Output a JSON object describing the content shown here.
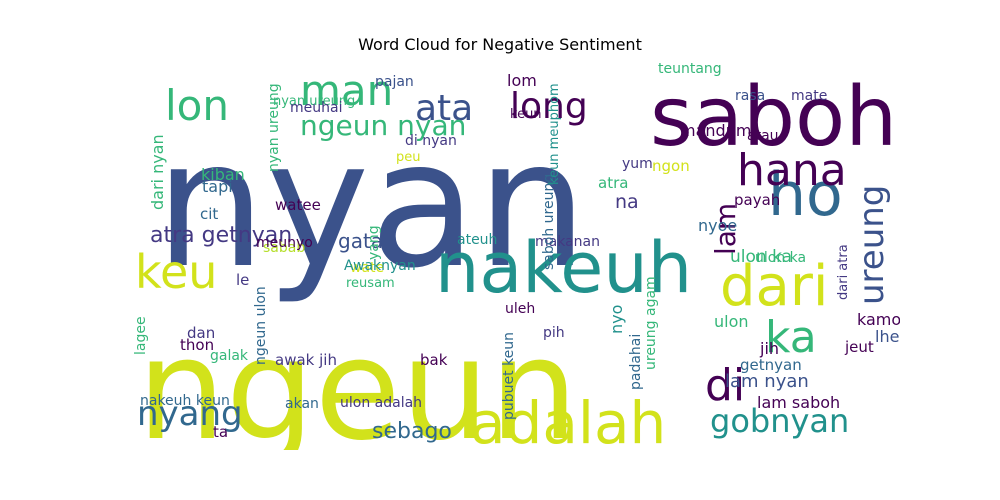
{
  "title": "Word Cloud for Negative Sentiment",
  "palette": "viridis",
  "words": [
    {
      "text": "nyan",
      "color": "#3b528b"
    },
    {
      "text": "ngeun",
      "color": "#d2e21b"
    },
    {
      "text": "saboh",
      "color": "#440154"
    },
    {
      "text": "nakeuh",
      "color": "#21918c"
    },
    {
      "text": "adalah",
      "color": "#d2e21b"
    },
    {
      "text": "dari",
      "color": "#d2e21b"
    },
    {
      "text": "keu",
      "color": "#d2e21b"
    },
    {
      "text": "ho",
      "color": "#31688e"
    },
    {
      "text": "hana",
      "color": "#440154"
    },
    {
      "text": "ka",
      "color": "#35b779"
    },
    {
      "text": "di",
      "color": "#440154"
    },
    {
      "text": "lon",
      "color": "#35b779"
    },
    {
      "text": "man",
      "color": "#35b779"
    },
    {
      "text": "ata",
      "color": "#3b528b"
    },
    {
      "text": "long",
      "color": "#440154"
    },
    {
      "text": "nyang",
      "color": "#31688e"
    },
    {
      "text": "gobnyan",
      "color": "#21918c"
    },
    {
      "text": "ureung",
      "color": "#3b528b"
    },
    {
      "text": "lam",
      "color": "#440154"
    },
    {
      "text": "ngeun nyan",
      "color": "#35b779"
    },
    {
      "text": "atra getnyan",
      "color": "#443983"
    },
    {
      "text": "gata",
      "color": "#3b528b"
    },
    {
      "text": "sebago",
      "color": "#31688e"
    },
    {
      "text": "ulon ka",
      "color": "#35b779"
    },
    {
      "text": "lam saboh",
      "color": "#440154"
    },
    {
      "text": "lam nyan",
      "color": "#3b528b"
    },
    {
      "text": "lom",
      "color": "#440154"
    },
    {
      "text": "rasa",
      "color": "#3b528b"
    },
    {
      "text": "mate",
      "color": "#443983"
    },
    {
      "text": "teuntang",
      "color": "#35b779"
    },
    {
      "text": "nyan ureung",
      "color": "#35b779"
    },
    {
      "text": "pajan",
      "color": "#3b528b"
    },
    {
      "text": "meuhai",
      "color": "#443983"
    },
    {
      "text": "di nyan",
      "color": "#443983"
    },
    {
      "text": "keun",
      "color": "#440154"
    },
    {
      "text": "mandum",
      "color": "#440154"
    },
    {
      "text": "atau",
      "color": "#440154"
    },
    {
      "text": "dari nyan",
      "color": "#35b779"
    },
    {
      "text": "tapi",
      "color": "#31688e"
    },
    {
      "text": "kiban",
      "color": "#35b779"
    },
    {
      "text": "cit",
      "color": "#31688e"
    },
    {
      "text": "watee",
      "color": "#440154"
    },
    {
      "text": "sabab",
      "color": "#b5de2b"
    },
    {
      "text": "yang",
      "color": "#35b779"
    },
    {
      "text": "peu",
      "color": "#d2e21b"
    },
    {
      "text": "yum",
      "color": "#443983"
    },
    {
      "text": "ngon",
      "color": "#d2e21b"
    },
    {
      "text": "atra",
      "color": "#35b779"
    },
    {
      "text": "na",
      "color": "#443983"
    },
    {
      "text": "payah",
      "color": "#440154"
    },
    {
      "text": "nyoe",
      "color": "#31688e"
    },
    {
      "text": "makanan",
      "color": "#443983"
    },
    {
      "text": "ateuh",
      "color": "#21918c"
    },
    {
      "text": "meunyo",
      "color": "#440154"
    },
    {
      "text": "wate",
      "color": "#d2e21b"
    },
    {
      "text": "Awaknyan",
      "color": "#21918c"
    },
    {
      "text": "reusam",
      "color": "#35b779"
    },
    {
      "text": "le",
      "color": "#443983"
    },
    {
      "text": "uleh",
      "color": "#440154"
    },
    {
      "text": "pih",
      "color": "#443983"
    },
    {
      "text": "nyo",
      "color": "#21918c"
    },
    {
      "text": "ulon",
      "color": "#35b779"
    },
    {
      "text": "jih",
      "color": "#440154"
    },
    {
      "text": "kamoe",
      "color": "#440154"
    },
    {
      "text": "lheuh",
      "color": "#3b528b"
    },
    {
      "text": "jeut",
      "color": "#440154"
    },
    {
      "text": "getnyan",
      "color": "#31688e"
    },
    {
      "text": "awak jih",
      "color": "#443983"
    },
    {
      "text": "bak",
      "color": "#440154"
    },
    {
      "text": "ulon adalah",
      "color": "#443983"
    },
    {
      "text": "akan",
      "color": "#31688e"
    },
    {
      "text": "nakeuh keun",
      "color": "#31688e"
    },
    {
      "text": "galak",
      "color": "#35b779"
    },
    {
      "text": "thon",
      "color": "#440154"
    },
    {
      "text": "dan",
      "color": "#443983"
    },
    {
      "text": "ta",
      "color": "#440154"
    },
    {
      "text": "padahai",
      "color": "#31688e"
    },
    {
      "text": "pubuet keun",
      "color": "#31688e"
    },
    {
      "text": "saboh ureung",
      "color": "#31688e"
    },
    {
      "text": "keun meuphom",
      "color": "#21918c"
    },
    {
      "text": "ngeun ulon",
      "color": "#31688e"
    },
    {
      "text": "nyan ureung",
      "color": "#35b779"
    },
    {
      "text": "lagee",
      "color": "#35b779"
    },
    {
      "text": "ureung agam",
      "color": "#35b779"
    },
    {
      "text": "dari atra",
      "color": "#443983"
    },
    {
      "text": "ulon ka",
      "color": "#35b779"
    }
  ]
}
